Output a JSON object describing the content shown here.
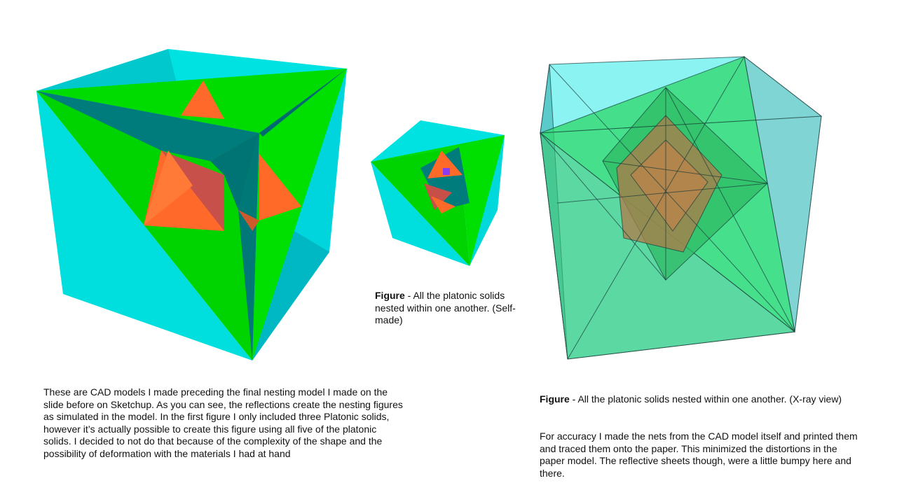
{
  "figures": {
    "cube_large": {
      "description_icon": "nested-platonic-solids-render"
    },
    "cube_small": {
      "description_icon": "nested-platonic-solids-render"
    },
    "cube_xray": {
      "description_icon": "nested-platonic-solids-xray-render"
    }
  },
  "caption_middle": {
    "label": "Figure",
    "text": " - All the platonic solids nested within one another. (Self-made)"
  },
  "caption_right": {
    "label": "Figure",
    "text": " - All the platonic solids nested within one another. (X-ray view)"
  },
  "paragraph_left": "These are CAD models I made preceding the final nesting model I made on the slide before on Sketchup. As you can see, the reflections create the nesting figures as simulated in the model. In the first figure I only included three Platonic solids, however it’s actually possible to create this figure using all five of the platonic solids. I decided to not do that because of the complexity of the shape and the possibility of deformation with the materials I had at hand",
  "paragraph_right": "For accuracy I made the nets from the CAD model itself and printed them and traced them onto the paper. This minimized the distortions in the paper model. The reflective sheets though, were a little bumpy here and there.",
  "colors": {
    "cyan": "#00e0e0",
    "cyan_dark": "#00bcc8",
    "green": "#00dc00",
    "teal": "#007a7a",
    "orange": "#ff6a28",
    "red": "#c65048",
    "purple": "#8a3cf0"
  }
}
